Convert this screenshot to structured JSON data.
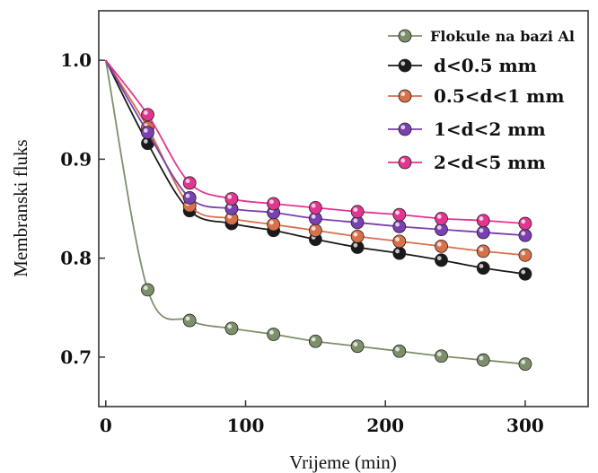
{
  "chart_data": {
    "type": "line",
    "xlabel": "Vrijeme (min)",
    "ylabel": "Membranski fluks",
    "xlim": [
      -5,
      345
    ],
    "ylim": [
      0.65,
      1.05
    ],
    "x_ticks": [
      0,
      100,
      200,
      300
    ],
    "x_tick_labels": [
      "0",
      "100",
      "200",
      "300"
    ],
    "y_ticks": [
      0.7,
      0.8,
      0.9,
      1.0
    ],
    "y_tick_labels": [
      "0.7",
      "0.8",
      "0.9",
      "1.0"
    ],
    "x": [
      30,
      60,
      90,
      120,
      150,
      180,
      210,
      240,
      270,
      300
    ],
    "legend_position": "top-right",
    "series": [
      {
        "name": "Flokule na bazi Al",
        "color": "#7d8f6a",
        "values": [
          0.768,
          0.737,
          0.729,
          0.723,
          0.716,
          0.711,
          0.706,
          0.701,
          0.697,
          0.693
        ]
      },
      {
        "name": "d<0.5 mm",
        "color": "#1a1a1a",
        "values": [
          0.916,
          0.848,
          0.835,
          0.828,
          0.819,
          0.811,
          0.805,
          0.798,
          0.79,
          0.784
        ]
      },
      {
        "name": "0.5<d<1 mm",
        "color": "#d8704a",
        "values": [
          0.932,
          0.853,
          0.84,
          0.834,
          0.828,
          0.822,
          0.817,
          0.812,
          0.807,
          0.803
        ]
      },
      {
        "name": "1<d<2 mm",
        "color": "#7a3fb0",
        "values": [
          0.927,
          0.861,
          0.85,
          0.846,
          0.84,
          0.836,
          0.832,
          0.829,
          0.826,
          0.823
        ]
      },
      {
        "name": "2<d<5 mm",
        "color": "#e2358f",
        "values": [
          0.945,
          0.876,
          0.86,
          0.855,
          0.851,
          0.847,
          0.844,
          0.84,
          0.838,
          0.835
        ]
      }
    ]
  }
}
